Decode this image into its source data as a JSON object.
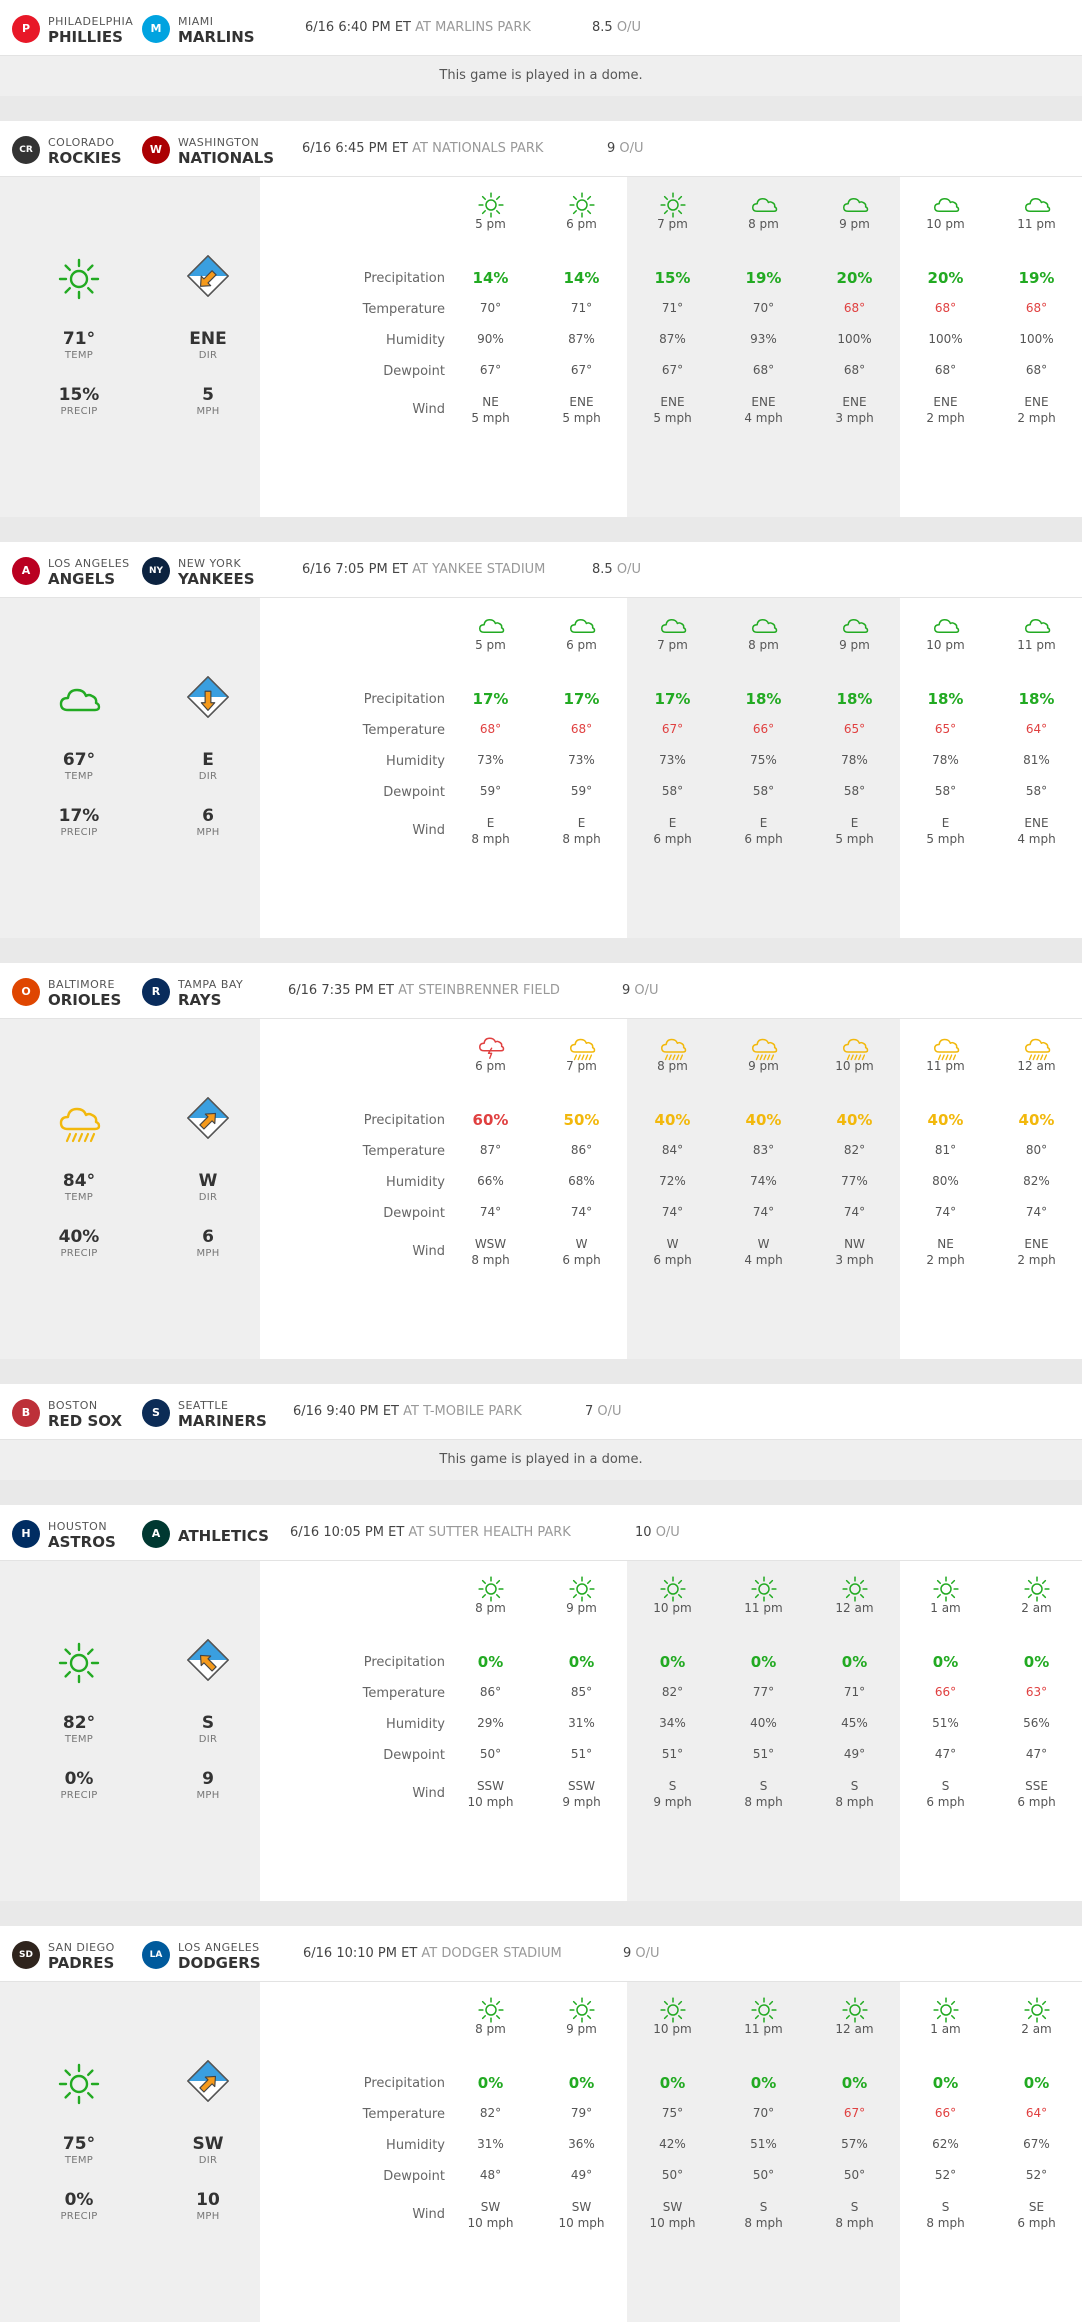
{
  "labels": {
    "precip": "Precipitation",
    "temp": "Temperature",
    "humidity": "Humidity",
    "dewpoint": "Dewpoint",
    "wind": "Wind",
    "temp_sub": "TEMP",
    "precip_sub": "PRECIP",
    "dir_sub": "DIR",
    "mph_sub": "MPH",
    "ou_label": "O/U"
  },
  "colors": {
    "green": "#22aa22",
    "yellow": "#f2b80c",
    "red": "#e04040",
    "wind_sky": "#3a9fe0",
    "wind_arrow": "#f59a1c"
  },
  "games": [
    {
      "away": {
        "city": "PHILADELPHIA",
        "name": "PHILLIES",
        "logo": "phillies-logo",
        "logo_text": "P",
        "logo_color": "#e81828"
      },
      "home": {
        "city": "MIAMI",
        "name": "MARLINS",
        "logo": "marlins-logo",
        "logo_text": "M",
        "logo_color": "#00a3e0"
      },
      "time": "6/16 6:40 PM ET",
      "park": "AT MARLINS PARK",
      "ou": "8.5",
      "dome": "This game is played in a dome."
    },
    {
      "away": {
        "city": "COLORADO",
        "name": "ROCKIES",
        "logo": "rockies-logo",
        "logo_text": "CR",
        "logo_color": "#333333"
      },
      "home": {
        "city": "WASHINGTON",
        "name": "NATIONALS",
        "logo": "nationals-logo",
        "logo_text": "W",
        "logo_color": "#ab0003"
      },
      "time": "6/16 6:45 PM ET",
      "park": "AT NATIONALS PARK",
      "ou": "9",
      "summary": {
        "icon": "sun-icon",
        "icon_color": "green",
        "temp": "71°",
        "precip": "15%",
        "wind_dir": "ENE",
        "wind_speed": "5",
        "wind_arrow": "arrow-down-left"
      },
      "hours": [
        {
          "time": "5 pm",
          "icon": "sun-icon",
          "precip": "14%",
          "pcolor": "green",
          "temp": "70°",
          "hot": false,
          "humidity": "90%",
          "dew": "67°",
          "wdir": "NE",
          "wspd": "5 mph"
        },
        {
          "time": "6 pm",
          "icon": "sun-icon",
          "precip": "14%",
          "pcolor": "green",
          "temp": "71°",
          "hot": false,
          "humidity": "87%",
          "dew": "67°",
          "wdir": "ENE",
          "wspd": "5 mph"
        },
        {
          "time": "7 pm",
          "icon": "sun-icon",
          "precip": "15%",
          "pcolor": "green",
          "temp": "71°",
          "hot": false,
          "humidity": "87%",
          "dew": "67°",
          "wdir": "ENE",
          "wspd": "5 mph"
        },
        {
          "time": "8 pm",
          "icon": "cloud-icon",
          "precip": "19%",
          "pcolor": "green",
          "temp": "70°",
          "hot": false,
          "humidity": "93%",
          "dew": "68°",
          "wdir": "ENE",
          "wspd": "4 mph"
        },
        {
          "time": "9 pm",
          "icon": "cloud-icon",
          "precip": "20%",
          "pcolor": "green",
          "temp": "68°",
          "hot": true,
          "humidity": "100%",
          "dew": "68°",
          "wdir": "ENE",
          "wspd": "3 mph"
        },
        {
          "time": "10 pm",
          "icon": "cloud-icon",
          "precip": "20%",
          "pcolor": "green",
          "temp": "68°",
          "hot": true,
          "humidity": "100%",
          "dew": "68°",
          "wdir": "ENE",
          "wspd": "2 mph"
        },
        {
          "time": "11 pm",
          "icon": "cloud-icon",
          "precip": "19%",
          "pcolor": "green",
          "temp": "68°",
          "hot": true,
          "humidity": "100%",
          "dew": "68°",
          "wdir": "ENE",
          "wspd": "2 mph"
        }
      ]
    },
    {
      "away": {
        "city": "LOS ANGELES",
        "name": "ANGELS",
        "logo": "angels-logo",
        "logo_text": "A",
        "logo_color": "#ba0021"
      },
      "home": {
        "city": "NEW YORK",
        "name": "YANKEES",
        "logo": "yankees-logo",
        "logo_text": "NY",
        "logo_color": "#0c2340"
      },
      "time": "6/16 7:05 PM ET",
      "park": "AT YANKEE STADIUM",
      "ou": "8.5",
      "summary": {
        "icon": "cloud-icon",
        "icon_color": "green",
        "temp": "67°",
        "precip": "17%",
        "wind_dir": "E",
        "wind_speed": "6",
        "wind_arrow": "arrow-down"
      },
      "hours": [
        {
          "time": "5 pm",
          "icon": "cloud-icon",
          "precip": "17%",
          "pcolor": "green",
          "temp": "68°",
          "hot": true,
          "humidity": "73%",
          "dew": "59°",
          "wdir": "E",
          "wspd": "8 mph"
        },
        {
          "time": "6 pm",
          "icon": "cloud-icon",
          "precip": "17%",
          "pcolor": "green",
          "temp": "68°",
          "hot": true,
          "humidity": "73%",
          "dew": "59°",
          "wdir": "E",
          "wspd": "8 mph"
        },
        {
          "time": "7 pm",
          "icon": "cloud-icon",
          "precip": "17%",
          "pcolor": "green",
          "temp": "67°",
          "hot": true,
          "humidity": "73%",
          "dew": "58°",
          "wdir": "E",
          "wspd": "6 mph"
        },
        {
          "time": "8 pm",
          "icon": "cloud-icon",
          "precip": "18%",
          "pcolor": "green",
          "temp": "66°",
          "hot": true,
          "humidity": "75%",
          "dew": "58°",
          "wdir": "E",
          "wspd": "6 mph"
        },
        {
          "time": "9 pm",
          "icon": "cloud-icon",
          "precip": "18%",
          "pcolor": "green",
          "temp": "65°",
          "hot": true,
          "humidity": "78%",
          "dew": "58°",
          "wdir": "E",
          "wspd": "5 mph"
        },
        {
          "time": "10 pm",
          "icon": "cloud-icon",
          "precip": "18%",
          "pcolor": "green",
          "temp": "65°",
          "hot": true,
          "humidity": "78%",
          "dew": "58°",
          "wdir": "E",
          "wspd": "5 mph"
        },
        {
          "time": "11 pm",
          "icon": "cloud-icon",
          "precip": "18%",
          "pcolor": "green",
          "temp": "64°",
          "hot": true,
          "humidity": "81%",
          "dew": "58°",
          "wdir": "ENE",
          "wspd": "4 mph"
        }
      ]
    },
    {
      "away": {
        "city": "BALTIMORE",
        "name": "ORIOLES",
        "logo": "orioles-logo",
        "logo_text": "O",
        "logo_color": "#df4601"
      },
      "home": {
        "city": "TAMPA BAY",
        "name": "RAYS",
        "logo": "rays-logo",
        "logo_text": "R",
        "logo_color": "#092c5c"
      },
      "time": "6/16 7:35 PM ET",
      "park": "AT STEINBRENNER FIELD",
      "ou": "9",
      "summary": {
        "icon": "rain-icon",
        "icon_color": "yellow",
        "temp": "84°",
        "precip": "40%",
        "wind_dir": "W",
        "wind_speed": "6",
        "wind_arrow": "arrow-up-right"
      },
      "hours": [
        {
          "time": "6 pm",
          "icon": "storm-icon",
          "precip": "60%",
          "pcolor": "red",
          "temp": "87°",
          "hot": false,
          "humidity": "66%",
          "dew": "74°",
          "wdir": "WSW",
          "wspd": "8 mph"
        },
        {
          "time": "7 pm",
          "icon": "rain-icon",
          "precip": "50%",
          "pcolor": "yellow",
          "temp": "86°",
          "hot": false,
          "humidity": "68%",
          "dew": "74°",
          "wdir": "W",
          "wspd": "6 mph"
        },
        {
          "time": "8 pm",
          "icon": "rain-icon",
          "precip": "40%",
          "pcolor": "yellow",
          "temp": "84°",
          "hot": false,
          "humidity": "72%",
          "dew": "74°",
          "wdir": "W",
          "wspd": "6 mph"
        },
        {
          "time": "9 pm",
          "icon": "rain-icon",
          "precip": "40%",
          "pcolor": "yellow",
          "temp": "83°",
          "hot": false,
          "humidity": "74%",
          "dew": "74°",
          "wdir": "W",
          "wspd": "4 mph"
        },
        {
          "time": "10 pm",
          "icon": "rain-icon",
          "precip": "40%",
          "pcolor": "yellow",
          "temp": "82°",
          "hot": false,
          "humidity": "77%",
          "dew": "74°",
          "wdir": "NW",
          "wspd": "3 mph"
        },
        {
          "time": "11 pm",
          "icon": "rain-icon",
          "precip": "40%",
          "pcolor": "yellow",
          "temp": "81°",
          "hot": false,
          "humidity": "80%",
          "dew": "74°",
          "wdir": "NE",
          "wspd": "2 mph"
        },
        {
          "time": "12 am",
          "icon": "rain-icon",
          "precip": "40%",
          "pcolor": "yellow",
          "temp": "80°",
          "hot": false,
          "humidity": "82%",
          "dew": "74°",
          "wdir": "ENE",
          "wspd": "2 mph"
        }
      ]
    },
    {
      "away": {
        "city": "BOSTON",
        "name": "RED SOX",
        "logo": "redsox-logo",
        "logo_text": "B",
        "logo_color": "#bd3039"
      },
      "home": {
        "city": "SEATTLE",
        "name": "MARINERS",
        "logo": "mariners-logo",
        "logo_text": "S",
        "logo_color": "#0c2c56"
      },
      "time": "6/16 9:40 PM ET",
      "park": "AT T-MOBILE PARK",
      "ou": "7",
      "dome": "This game is played in a dome."
    },
    {
      "away": {
        "city": "HOUSTON",
        "name": "ASTROS",
        "logo": "astros-logo",
        "logo_text": "H",
        "logo_color": "#002d62"
      },
      "home": {
        "city": "",
        "name": "ATHLETICS",
        "logo": "athletics-logo",
        "logo_text": "A",
        "logo_color": "#003831"
      },
      "time": "6/16 10:05 PM ET",
      "park": "AT SUTTER HEALTH PARK",
      "ou": "10",
      "summary": {
        "icon": "sun-icon",
        "icon_color": "green",
        "temp": "82°",
        "precip": "0%",
        "wind_dir": "S",
        "wind_speed": "9",
        "wind_arrow": "arrow-up-left"
      },
      "hours": [
        {
          "time": "8 pm",
          "icon": "sun-icon",
          "precip": "0%",
          "pcolor": "green",
          "temp": "86°",
          "hot": false,
          "humidity": "29%",
          "dew": "50°",
          "wdir": "SSW",
          "wspd": "10 mph"
        },
        {
          "time": "9 pm",
          "icon": "sun-icon",
          "precip": "0%",
          "pcolor": "green",
          "temp": "85°",
          "hot": false,
          "humidity": "31%",
          "dew": "51°",
          "wdir": "SSW",
          "wspd": "9 mph"
        },
        {
          "time": "10 pm",
          "icon": "sun-icon",
          "precip": "0%",
          "pcolor": "green",
          "temp": "82°",
          "hot": false,
          "humidity": "34%",
          "dew": "51°",
          "wdir": "S",
          "wspd": "9 mph"
        },
        {
          "time": "11 pm",
          "icon": "sun-icon",
          "precip": "0%",
          "pcolor": "green",
          "temp": "77°",
          "hot": false,
          "humidity": "40%",
          "dew": "51°",
          "wdir": "S",
          "wspd": "8 mph"
        },
        {
          "time": "12 am",
          "icon": "sun-icon",
          "precip": "0%",
          "pcolor": "green",
          "temp": "71°",
          "hot": false,
          "humidity": "45%",
          "dew": "49°",
          "wdir": "S",
          "wspd": "8 mph"
        },
        {
          "time": "1 am",
          "icon": "sun-icon",
          "precip": "0%",
          "pcolor": "green",
          "temp": "66°",
          "hot": true,
          "humidity": "51%",
          "dew": "47°",
          "wdir": "S",
          "wspd": "6 mph"
        },
        {
          "time": "2 am",
          "icon": "sun-icon",
          "precip": "0%",
          "pcolor": "green",
          "temp": "63°",
          "hot": true,
          "humidity": "56%",
          "dew": "47°",
          "wdir": "SSE",
          "wspd": "6 mph"
        }
      ]
    },
    {
      "away": {
        "city": "SAN DIEGO",
        "name": "PADRES",
        "logo": "padres-logo",
        "logo_text": "SD",
        "logo_color": "#2f241d"
      },
      "home": {
        "city": "LOS ANGELES",
        "name": "DODGERS",
        "logo": "dodgers-logo",
        "logo_text": "LA",
        "logo_color": "#005a9c"
      },
      "time": "6/16 10:10 PM ET",
      "park": "AT DODGER STADIUM",
      "ou": "9",
      "summary": {
        "icon": "sun-icon",
        "icon_color": "green",
        "temp": "75°",
        "precip": "0%",
        "wind_dir": "SW",
        "wind_speed": "10",
        "wind_arrow": "arrow-up-right"
      },
      "hours": [
        {
          "time": "8 pm",
          "icon": "sun-icon",
          "precip": "0%",
          "pcolor": "green",
          "temp": "82°",
          "hot": false,
          "humidity": "31%",
          "dew": "48°",
          "wdir": "SW",
          "wspd": "10 mph"
        },
        {
          "time": "9 pm",
          "icon": "sun-icon",
          "precip": "0%",
          "pcolor": "green",
          "temp": "79°",
          "hot": false,
          "humidity": "36%",
          "dew": "49°",
          "wdir": "SW",
          "wspd": "10 mph"
        },
        {
          "time": "10 pm",
          "icon": "sun-icon",
          "precip": "0%",
          "pcolor": "green",
          "temp": "75°",
          "hot": false,
          "humidity": "42%",
          "dew": "50°",
          "wdir": "SW",
          "wspd": "10 mph"
        },
        {
          "time": "11 pm",
          "icon": "sun-icon",
          "precip": "0%",
          "pcolor": "green",
          "temp": "70°",
          "hot": false,
          "humidity": "51%",
          "dew": "50°",
          "wdir": "S",
          "wspd": "8 mph"
        },
        {
          "time": "12 am",
          "icon": "sun-icon",
          "precip": "0%",
          "pcolor": "green",
          "temp": "67°",
          "hot": true,
          "humidity": "57%",
          "dew": "50°",
          "wdir": "S",
          "wspd": "8 mph"
        },
        {
          "time": "1 am",
          "icon": "sun-icon",
          "precip": "0%",
          "pcolor": "green",
          "temp": "66°",
          "hot": true,
          "humidity": "62%",
          "dew": "52°",
          "wdir": "S",
          "wspd": "8 mph"
        },
        {
          "time": "2 am",
          "icon": "sun-icon",
          "precip": "0%",
          "pcolor": "green",
          "temp": "64°",
          "hot": true,
          "humidity": "67%",
          "dew": "52°",
          "wdir": "SE",
          "wspd": "6 mph"
        }
      ]
    }
  ]
}
